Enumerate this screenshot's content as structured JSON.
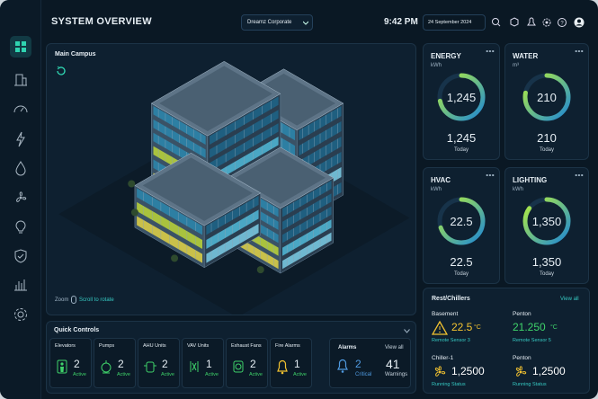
{
  "header": {
    "title": "SYSTEM OVERVIEW",
    "site": "Dreamz Corporate",
    "time": "9:42 PM",
    "date": "24 September 2024"
  },
  "main_view": {
    "title": "Main Campus",
    "zoom": "Zoom",
    "hint": "Scroll to rotate"
  },
  "quick_controls": {
    "title": "Quick Controls",
    "items": [
      {
        "label": "Elevators",
        "count": "2",
        "status": "Active"
      },
      {
        "label": "Pumps",
        "count": "2",
        "status": "Active"
      },
      {
        "label": "AHU Units",
        "count": "2",
        "status": "Active"
      },
      {
        "label": "VAV Units",
        "count": "1",
        "status": "Active"
      },
      {
        "label": "Exhaust Fans",
        "count": "2",
        "status": "Active"
      },
      {
        "label": "Fire Alarms",
        "count": "1",
        "status": "Active"
      }
    ]
  },
  "alarms": {
    "title": "Alarms",
    "link": "View all",
    "critical": {
      "count": "2",
      "label": "Critical"
    },
    "warnings": {
      "count": "41",
      "label": "Warnings"
    }
  },
  "meters": [
    {
      "label": "ENERGY",
      "unit": "kWh",
      "gauge": "1,245",
      "total": "1,245",
      "period": "Today"
    },
    {
      "label": "WATER",
      "unit": "m³",
      "gauge": "210",
      "total": "210",
      "period": "Today"
    },
    {
      "label": "HVAC",
      "unit": "kWh",
      "gauge": "22.5",
      "total": "22.5",
      "period": "Today"
    },
    {
      "label": "LIGHTING",
      "unit": "kWh",
      "gauge": "1,350",
      "total": "1,350",
      "period": "Today"
    }
  ],
  "chillers": {
    "title": "Rest/Chillers",
    "link": "View all",
    "items": [
      {
        "name": "Basement",
        "value": "22.5",
        "unit": "°C",
        "note": "Remote Sensor 3"
      },
      {
        "name": "Penton",
        "value": "21.250",
        "unit": "°C",
        "note": "Remote Sensor 5"
      },
      {
        "name": "Chiller-1",
        "value": "1,2500",
        "note": "Running Status"
      },
      {
        "name": "Penton",
        "value": "1,2500",
        "note": "Running Status"
      }
    ]
  }
}
